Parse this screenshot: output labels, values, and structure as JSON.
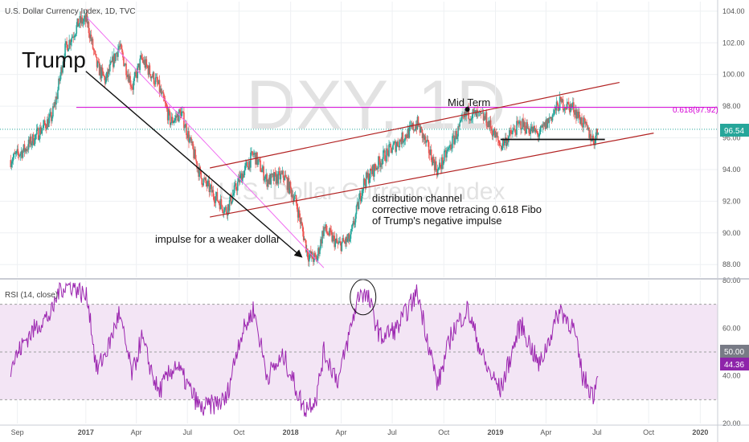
{
  "chart_data": {
    "type": "candlestick",
    "header": "U.S. Dollar Currency Index, 1D, TVC",
    "watermark": {
      "big": "DXY, 1D",
      "small": "U.S. Dollar Currency Index"
    },
    "price_axis": {
      "ylim": [
        87.2,
        104.6
      ],
      "ticks": [
        "104.00",
        "102.00",
        "100.00",
        "98.00",
        "96.00",
        "94.00",
        "92.00",
        "90.00",
        "88.00"
      ]
    },
    "time_axis": {
      "labels": [
        "Sep",
        "2017",
        "Apr",
        "Jul",
        "Oct",
        "2018",
        "Apr",
        "Jul",
        "Oct",
        "2019",
        "Apr",
        "Jul",
        "Oct",
        "2020"
      ]
    },
    "price_path": [
      [
        "2016-08-20",
        94.6
      ],
      [
        "2016-09-15",
        95.3
      ],
      [
        "2016-10-10",
        96.4
      ],
      [
        "2016-11-01",
        97.3
      ],
      [
        "2016-11-10",
        98.6
      ],
      [
        "2016-11-24",
        101.5
      ],
      [
        "2016-12-20",
        103.3
      ],
      [
        "2017-01-03",
        103.4
      ],
      [
        "2017-01-20",
        100.6
      ],
      [
        "2017-02-05",
        99.6
      ],
      [
        "2017-03-01",
        101.8
      ],
      [
        "2017-03-25",
        99.2
      ],
      [
        "2017-04-10",
        101.0
      ],
      [
        "2017-05-10",
        99.3
      ],
      [
        "2017-06-01",
        97.0
      ],
      [
        "2017-06-20",
        97.6
      ],
      [
        "2017-07-25",
        93.5
      ],
      [
        "2017-09-08",
        91.4
      ],
      [
        "2017-10-01",
        93.3
      ],
      [
        "2017-10-27",
        95.0
      ],
      [
        "2017-11-20",
        93.3
      ],
      [
        "2017-12-20",
        93.6
      ],
      [
        "2018-01-10",
        92.0
      ],
      [
        "2018-02-01",
        88.6
      ],
      [
        "2018-02-16",
        88.3
      ],
      [
        "2018-03-01",
        90.3
      ],
      [
        "2018-03-27",
        89.2
      ],
      [
        "2018-04-17",
        89.6
      ],
      [
        "2018-05-10",
        93.1
      ],
      [
        "2018-06-15",
        94.8
      ],
      [
        "2018-08-15",
        96.9
      ],
      [
        "2018-09-20",
        93.9
      ],
      [
        "2018-11-12",
        97.6
      ],
      [
        "2018-12-15",
        97.2
      ],
      [
        "2019-01-10",
        95.5
      ],
      [
        "2019-02-15",
        96.9
      ],
      [
        "2019-03-20",
        96.2
      ],
      [
        "2019-04-26",
        98.2
      ],
      [
        "2019-05-20",
        97.9
      ],
      [
        "2019-06-25",
        95.8
      ],
      [
        "2019-07-03",
        96.5
      ]
    ],
    "last_price": "96.54",
    "fibo": {
      "value": 97.92,
      "label": "0.618(97.92)"
    },
    "rsi": {
      "title": "RSI (14, close)",
      "ylim": [
        20,
        80
      ],
      "ticks": [
        "80.00",
        "60.00",
        "40.00",
        "20.00"
      ],
      "midline": "50.00",
      "last_value": "44.36",
      "band": [
        30,
        70
      ],
      "path": [
        [
          "2016-08-20",
          44
        ],
        [
          "2016-09-15",
          55
        ],
        [
          "2016-10-10",
          62
        ],
        [
          "2016-11-01",
          66
        ],
        [
          "2016-11-15",
          77
        ],
        [
          "2016-12-10",
          78
        ],
        [
          "2017-01-05",
          72
        ],
        [
          "2017-01-20",
          42
        ],
        [
          "2017-02-10",
          52
        ],
        [
          "2017-03-01",
          66
        ],
        [
          "2017-03-25",
          40
        ],
        [
          "2017-04-10",
          56
        ],
        [
          "2017-05-10",
          33
        ],
        [
          "2017-06-10",
          45
        ],
        [
          "2017-07-25",
          26
        ],
        [
          "2017-09-08",
          30
        ],
        [
          "2017-10-01",
          55
        ],
        [
          "2017-10-27",
          68
        ],
        [
          "2017-11-20",
          40
        ],
        [
          "2017-12-20",
          48
        ],
        [
          "2018-01-25",
          26
        ],
        [
          "2018-02-16",
          31
        ],
        [
          "2018-03-01",
          50
        ],
        [
          "2018-03-27",
          38
        ],
        [
          "2018-04-24",
          66
        ],
        [
          "2018-05-05",
          76
        ],
        [
          "2018-05-20",
          72
        ],
        [
          "2018-06-10",
          56
        ],
        [
          "2018-07-10",
          60
        ],
        [
          "2018-08-15",
          75
        ],
        [
          "2018-09-20",
          36
        ],
        [
          "2018-10-15",
          58
        ],
        [
          "2018-11-12",
          68
        ],
        [
          "2018-12-15",
          44
        ],
        [
          "2019-01-10",
          34
        ],
        [
          "2019-02-15",
          62
        ],
        [
          "2019-03-20",
          44
        ],
        [
          "2019-04-26",
          68
        ],
        [
          "2019-05-20",
          60
        ],
        [
          "2019-06-05",
          40
        ],
        [
          "2019-06-25",
          32
        ],
        [
          "2019-07-03",
          44
        ]
      ]
    },
    "annotations": {
      "trump": "Trump",
      "mid_term": "Mid Term",
      "impulse": "impulse for a weaker dollar",
      "channel": [
        "distribution channel",
        "corrective move retracing 0.618 Fibo",
        "of Trump's negative impulse"
      ]
    },
    "drawings": {
      "channel_upper": [
        [
          "2017-08-10",
          94.1
        ],
        [
          "2019-08-10",
          99.5
        ]
      ],
      "channel_lower": [
        [
          "2017-08-10",
          91.0
        ],
        [
          "2019-10-10",
          96.3
        ]
      ],
      "channel_mid_point": [
        "2018-11-12",
        97.8
      ],
      "impulse_arrow": [
        [
          "2017-01-01",
          100.2
        ],
        [
          "2018-01-20",
          88.5
        ]
      ],
      "pink_trendline": [
        [
          "2017-01-03",
          103.6
        ],
        [
          "2018-03-01",
          87.8
        ]
      ],
      "support_line": [
        [
          "2019-01-10",
          95.9
        ],
        [
          "2019-07-15",
          95.9
        ]
      ]
    },
    "colors": {
      "up": "#26a69a",
      "down": "#ef5350",
      "fibo": "#d500d5",
      "channel": "#b22222",
      "last_price": "#26a69a",
      "rsi_line": "#9c27b0",
      "rsi_band": "#f3e5f5",
      "rsi_value": "#8e24aa"
    }
  }
}
